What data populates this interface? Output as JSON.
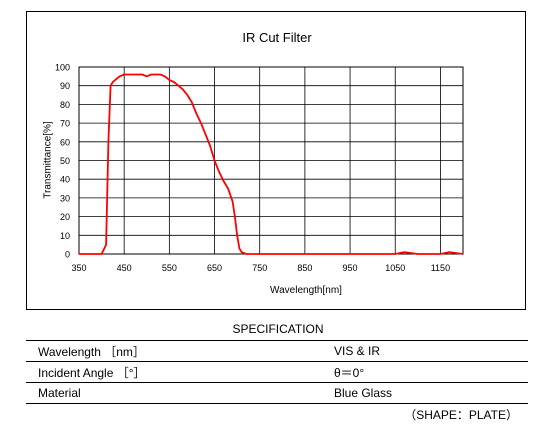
{
  "chart_data": {
    "type": "line",
    "title": "IR Cut Filter",
    "xlabel": "Wavelength[nm]",
    "ylabel": "Transmittance[%]",
    "xlim": [
      350,
      1200
    ],
    "ylim": [
      0,
      100
    ],
    "x_ticks": [
      350,
      450,
      550,
      650,
      750,
      850,
      950,
      1050,
      1150
    ],
    "y_ticks": [
      0,
      10,
      20,
      30,
      40,
      50,
      60,
      70,
      80,
      90,
      100
    ],
    "grid": true,
    "line_color": "#ff0000",
    "series": [
      {
        "x": [
          350,
          380,
          400,
          410,
          415,
          420,
          425,
          430,
          440,
          450,
          460,
          470,
          480,
          490,
          500,
          510,
          520,
          530,
          540,
          550,
          560,
          570,
          580,
          590,
          600,
          610,
          620,
          630,
          640,
          650,
          660,
          670,
          680,
          690,
          695,
          700,
          705,
          710,
          720,
          750,
          800,
          900,
          1000,
          1050,
          1070,
          1100,
          1150,
          1170,
          1200
        ],
        "y": [
          0,
          0,
          0,
          5,
          60,
          90,
          92,
          93,
          95,
          96,
          96,
          96,
          96,
          96,
          95,
          96,
          96,
          96,
          95,
          93,
          92,
          90,
          88,
          85,
          81,
          75,
          70,
          64,
          58,
          50,
          44,
          39,
          35,
          28,
          20,
          10,
          3,
          1,
          0,
          0,
          0,
          0,
          0,
          0,
          1,
          0,
          0,
          1,
          0
        ]
      }
    ]
  },
  "spec": {
    "title": "SPECIFICATION",
    "rows": [
      {
        "key": "Wavelength ［nm］",
        "value": "VIS & IR"
      },
      {
        "key": "Incident Angle ［°］",
        "value": "θ＝0°"
      },
      {
        "key": "Material",
        "value": "Blue Glass"
      }
    ],
    "shape_note": "（SHAPE：PLATE）"
  }
}
